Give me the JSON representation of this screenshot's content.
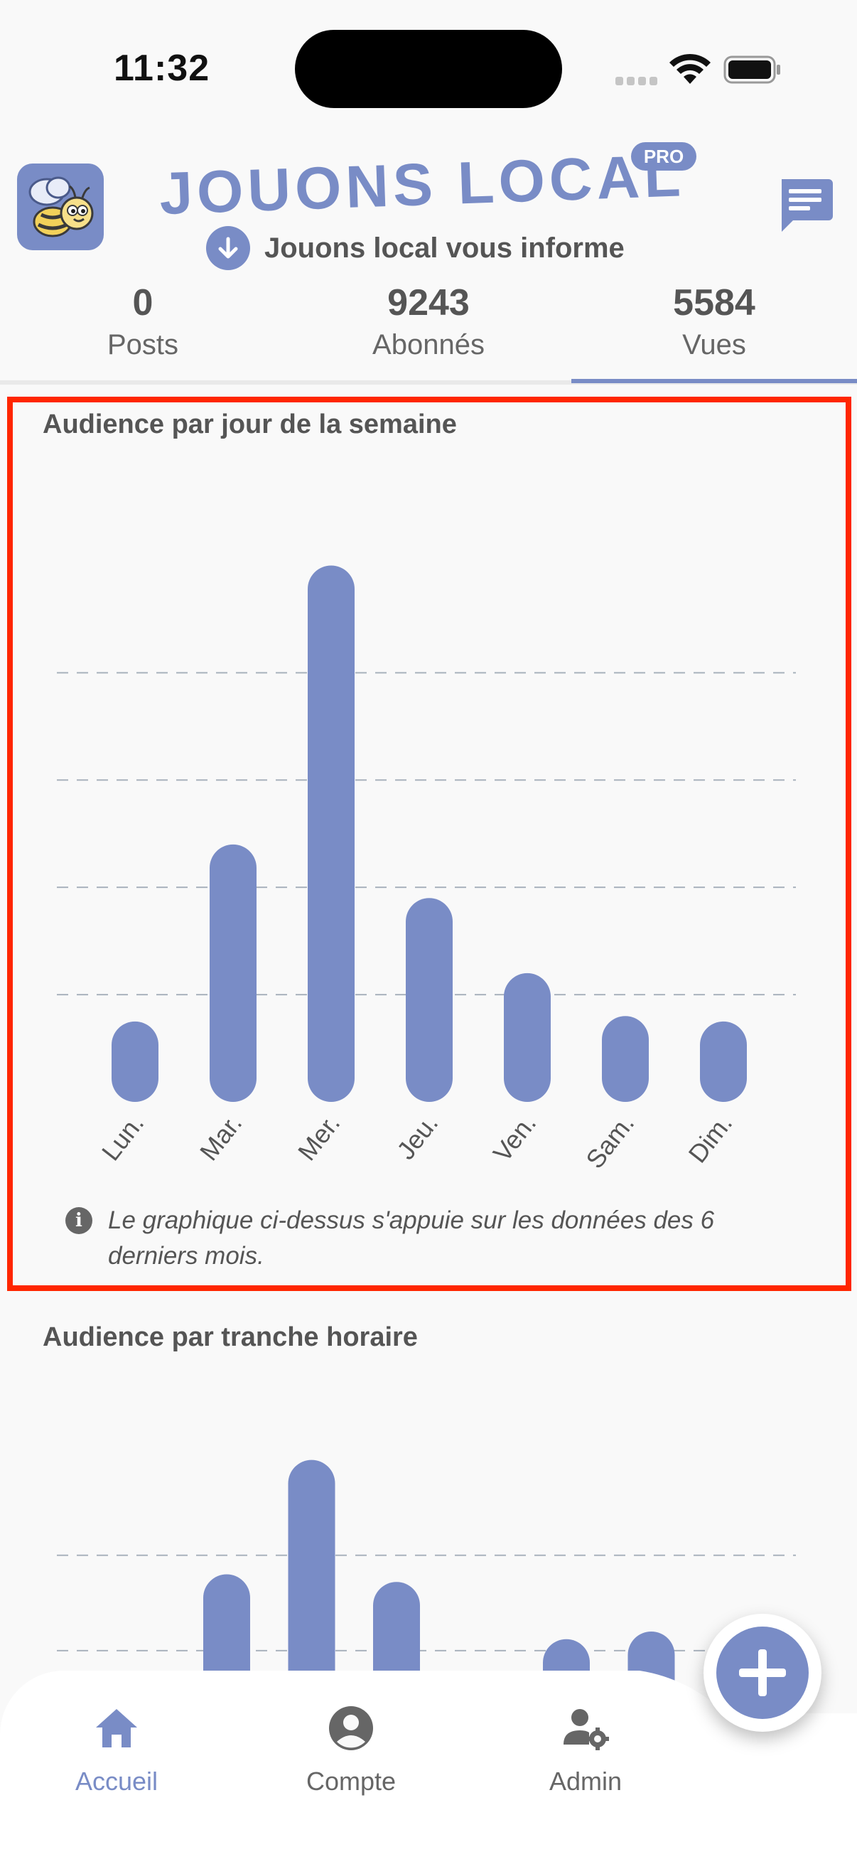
{
  "status_bar": {
    "time": "11:32"
  },
  "header": {
    "brand_name": "JOUONS LOCAL",
    "pro_badge": "PRO",
    "subtitle": "Jouons local vous informe"
  },
  "stats": [
    {
      "value": "0",
      "label": "Posts"
    },
    {
      "value": "9243",
      "label": "Abonnés"
    },
    {
      "value": "5584",
      "label": "Vues"
    }
  ],
  "selected_stat_tab": "Vues",
  "colors": {
    "accent": "#798cc6",
    "highlight": "#ff2600",
    "text": "#555555",
    "background": "#f9f9f9"
  },
  "chart_data": [
    {
      "type": "bar",
      "title": "Audience par jour de la semaine",
      "categories": [
        "Lun.",
        "Mar.",
        "Mer.",
        "Jeu.",
        "Ven.",
        "Sam.",
        "Dim."
      ],
      "values": [
        15,
        48,
        100,
        38,
        24,
        16,
        15
      ],
      "ylim": [
        0,
        110
      ],
      "gridlines": [
        20,
        40,
        60,
        80
      ],
      "grid": true,
      "note": "Le graphique ci-dessus s'appuie sur les données des 6 derniers mois."
    },
    {
      "type": "bar",
      "title": "Audience par tranche horaire",
      "categories": [
        "",
        "",
        "",
        "",
        "",
        "",
        "",
        "",
        ""
      ],
      "values": [
        0,
        0,
        70,
        100,
        68,
        35,
        53,
        55,
        55
      ],
      "ylim": [
        0,
        110
      ],
      "gridlines": [
        25,
        50,
        75
      ],
      "grid": true
    }
  ],
  "bottom_nav": [
    {
      "label": "Accueil",
      "icon": "home-icon",
      "active": true
    },
    {
      "label": "Compte",
      "icon": "account-circle-icon",
      "active": false
    },
    {
      "label": "Admin",
      "icon": "admin-settings-icon",
      "active": false
    }
  ],
  "fab": {
    "icon": "plus-icon"
  }
}
